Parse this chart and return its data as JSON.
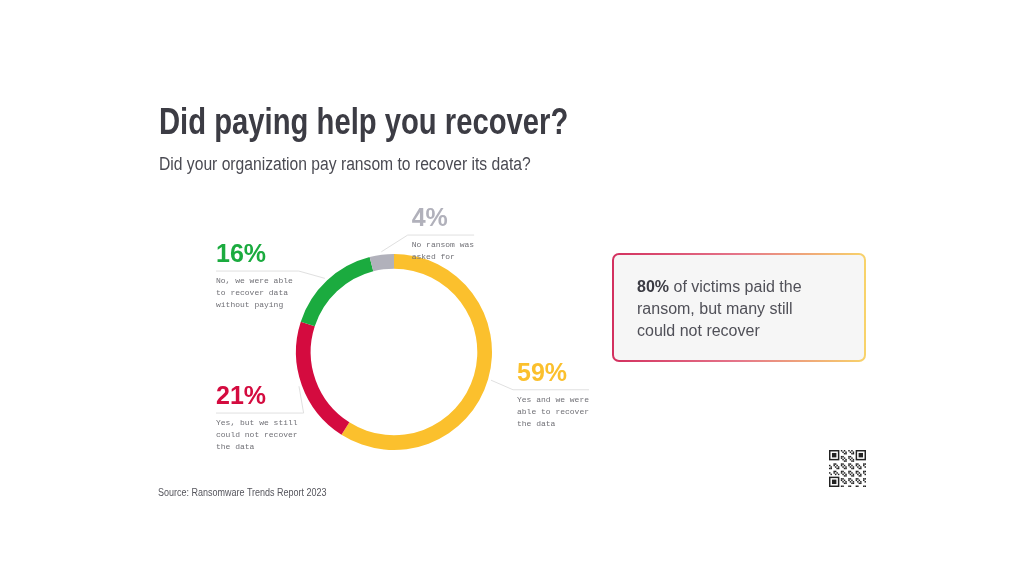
{
  "chart_data": {
    "type": "donut",
    "title": "Did paying help you recover?",
    "subtitle": "Did your organization pay ransom to recover its data?",
    "categories": [
      "Yes and we were able to recover the data",
      "Yes, but we still could not recover the data",
      "No, we were able to recover data without paying",
      "No ransom was asked for"
    ],
    "values": [
      59,
      21,
      16,
      4
    ],
    "colors": [
      "#fbc02d",
      "#d40b3f",
      "#1bab3f",
      "#b1b1bb"
    ],
    "value_labels": [
      "59%",
      "21%",
      "16%",
      "4%"
    ],
    "annotations": [
      "80% of victims paid the ransom, but many still could not recover",
      "Source: Ransomware Trends Report 2023"
    ]
  }
}
